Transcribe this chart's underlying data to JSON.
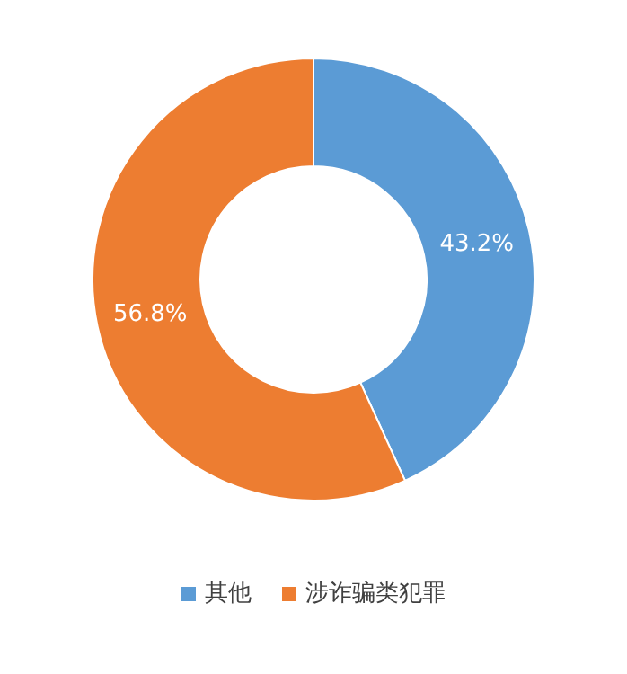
{
  "chart_data": {
    "type": "donut",
    "categories": [
      "其他",
      "涉诈骗类犯罪"
    ],
    "values": [
      43.2,
      56.8
    ],
    "colors": [
      "#5b9bd5",
      "#ed7d31"
    ],
    "value_labels": [
      "43.2%",
      "56.8%"
    ],
    "legend": "bottom"
  }
}
